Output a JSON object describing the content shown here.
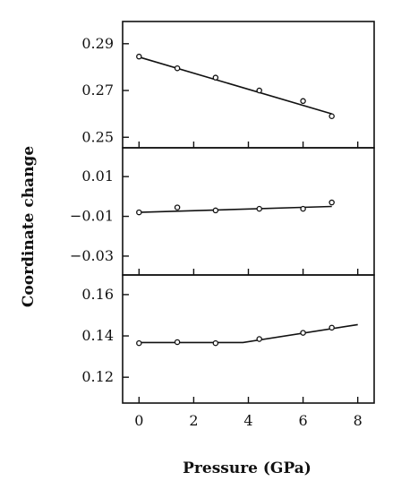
{
  "chart_data": [
    {
      "type": "scatter",
      "panel": "top",
      "xlim": [
        -0.6,
        8.6
      ],
      "ylim": [
        0.2455,
        0.2995
      ],
      "y_ticks": [
        0.25,
        0.27,
        0.29
      ],
      "y_tick_labels": [
        "0.25",
        "0.27",
        "0.29"
      ],
      "points": {
        "x": [
          0.0,
          1.4,
          2.8,
          4.4,
          6.0,
          7.05
        ],
        "y": [
          0.2845,
          0.2795,
          0.2755,
          0.27,
          0.2655,
          0.259
        ]
      },
      "fit_line": {
        "x": [
          0.0,
          7.05
        ],
        "y": [
          0.2843,
          0.26
        ]
      }
    },
    {
      "type": "scatter",
      "panel": "middle",
      "xlim": [
        -0.6,
        8.6
      ],
      "ylim": [
        -0.0395,
        0.0245
      ],
      "y_ticks": [
        0.01,
        -0.01,
        -0.03
      ],
      "y_tick_labels": [
        "0.01",
        "-0.01",
        "-0.03"
      ],
      "points": {
        "x": [
          0.0,
          1.4,
          2.8,
          4.4,
          6.0,
          7.05
        ],
        "y": [
          -0.008,
          -0.0055,
          -0.007,
          -0.0062,
          -0.0062,
          -0.003
        ]
      },
      "fit_line": {
        "x": [
          0.0,
          7.05
        ],
        "y": [
          -0.008,
          -0.005
        ]
      }
    },
    {
      "type": "scatter",
      "panel": "bottom",
      "xlim": [
        -0.6,
        8.6
      ],
      "ylim": [
        0.1075,
        0.1695
      ],
      "y_ticks": [
        0.16,
        0.14,
        0.12
      ],
      "y_tick_labels": [
        "0.16",
        "0.14",
        "0.12"
      ],
      "points": {
        "x": [
          0.0,
          1.4,
          2.8,
          4.4,
          6.0,
          7.05
        ],
        "y": [
          0.1365,
          0.137,
          0.1365,
          0.1385,
          0.1415,
          0.144
        ]
      },
      "fit_line": {
        "x": [
          0.0,
          3.8,
          8.0
        ],
        "y": [
          0.1368,
          0.1368,
          0.1455
        ]
      },
      "x_ticks": [
        0,
        2,
        4,
        6,
        8
      ],
      "x_tick_labels": [
        "0",
        "2",
        "4",
        "6",
        "8"
      ]
    }
  ],
  "xlabel": "Pressure (GPa)",
  "ylabel": "Coordinate change"
}
